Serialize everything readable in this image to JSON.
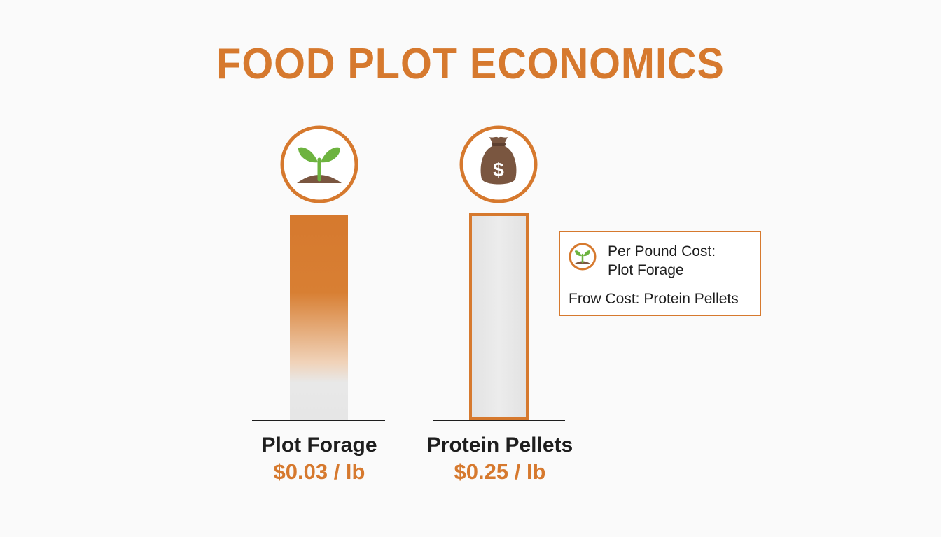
{
  "colors": {
    "accent": "#d6792e",
    "bar_fade": "#e6e6e6",
    "axis": "#1e1e1e",
    "leaf": "#6db33f",
    "soil": "#7a5640"
  },
  "header": {
    "title": "FOOD PLOT ECONOMICS"
  },
  "chart_data": {
    "type": "bar",
    "title": "FOOD PLOT ECONOMICS",
    "unit": "$ / lb",
    "categories": [
      "Plot Forage",
      "Protein Pellets"
    ],
    "values": [
      0.03,
      0.25
    ],
    "value_labels": [
      "$0.03 / lb",
      "$0.25 / lb"
    ],
    "icons": [
      "sprout-icon",
      "money-bag-icon"
    ],
    "legend": {
      "placement": "right",
      "line1": "Per Pound Cost:",
      "line2": "Plot Forage",
      "line3": "Frow Cost: Protein Pellets"
    }
  }
}
